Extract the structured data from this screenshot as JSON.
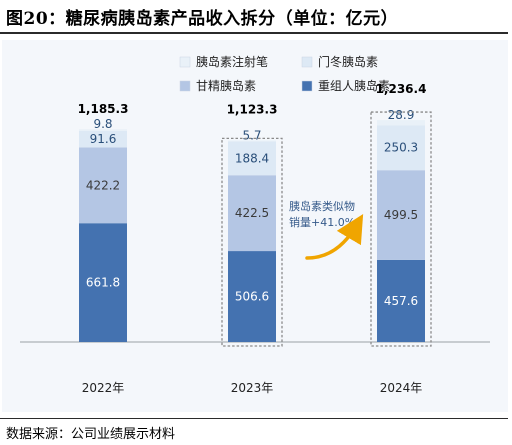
{
  "figure": {
    "title": "图20：糖尿病胰岛素产品收入拆分（单位：亿元）",
    "source": "数据来源：公司业绩展示材料"
  },
  "chart_data": {
    "type": "bar",
    "stacked": true,
    "categories": [
      "2022年",
      "2023年",
      "2024年"
    ],
    "series": [
      {
        "name": "重组人胰岛素",
        "color": "#4472b0",
        "value_color": "#ffffff",
        "values": [
          661.8,
          506.6,
          457.6
        ]
      },
      {
        "name": "甘精胰岛素",
        "color": "#b4c6e4",
        "value_color": "#3a3a3a",
        "values": [
          422.2,
          422.5,
          499.5
        ]
      },
      {
        "name": "门冬胰岛素",
        "color": "#dde9f5",
        "value_color": "#2a4f7a",
        "values": [
          91.6,
          188.4,
          250.3
        ]
      },
      {
        "name": "胰岛素注射笔",
        "color": "#e9f1f8",
        "value_color": "#2a4f7a",
        "values": [
          9.8,
          5.7,
          28.9
        ]
      }
    ],
    "totals": [
      "1,185.3",
      "1,123.3",
      "1,236.4"
    ],
    "legend_order": [
      "胰岛素注射笔",
      "门冬胰岛素",
      "甘精胰岛素",
      "重组人胰岛素"
    ],
    "legend_position": "top",
    "annotation": {
      "line1": "胰岛素类似物",
      "line2": "销量+41.0%"
    },
    "highlighted_bars": [
      "2023年",
      "2024年"
    ],
    "ylim": [
      0,
      1300
    ],
    "grid": false
  }
}
